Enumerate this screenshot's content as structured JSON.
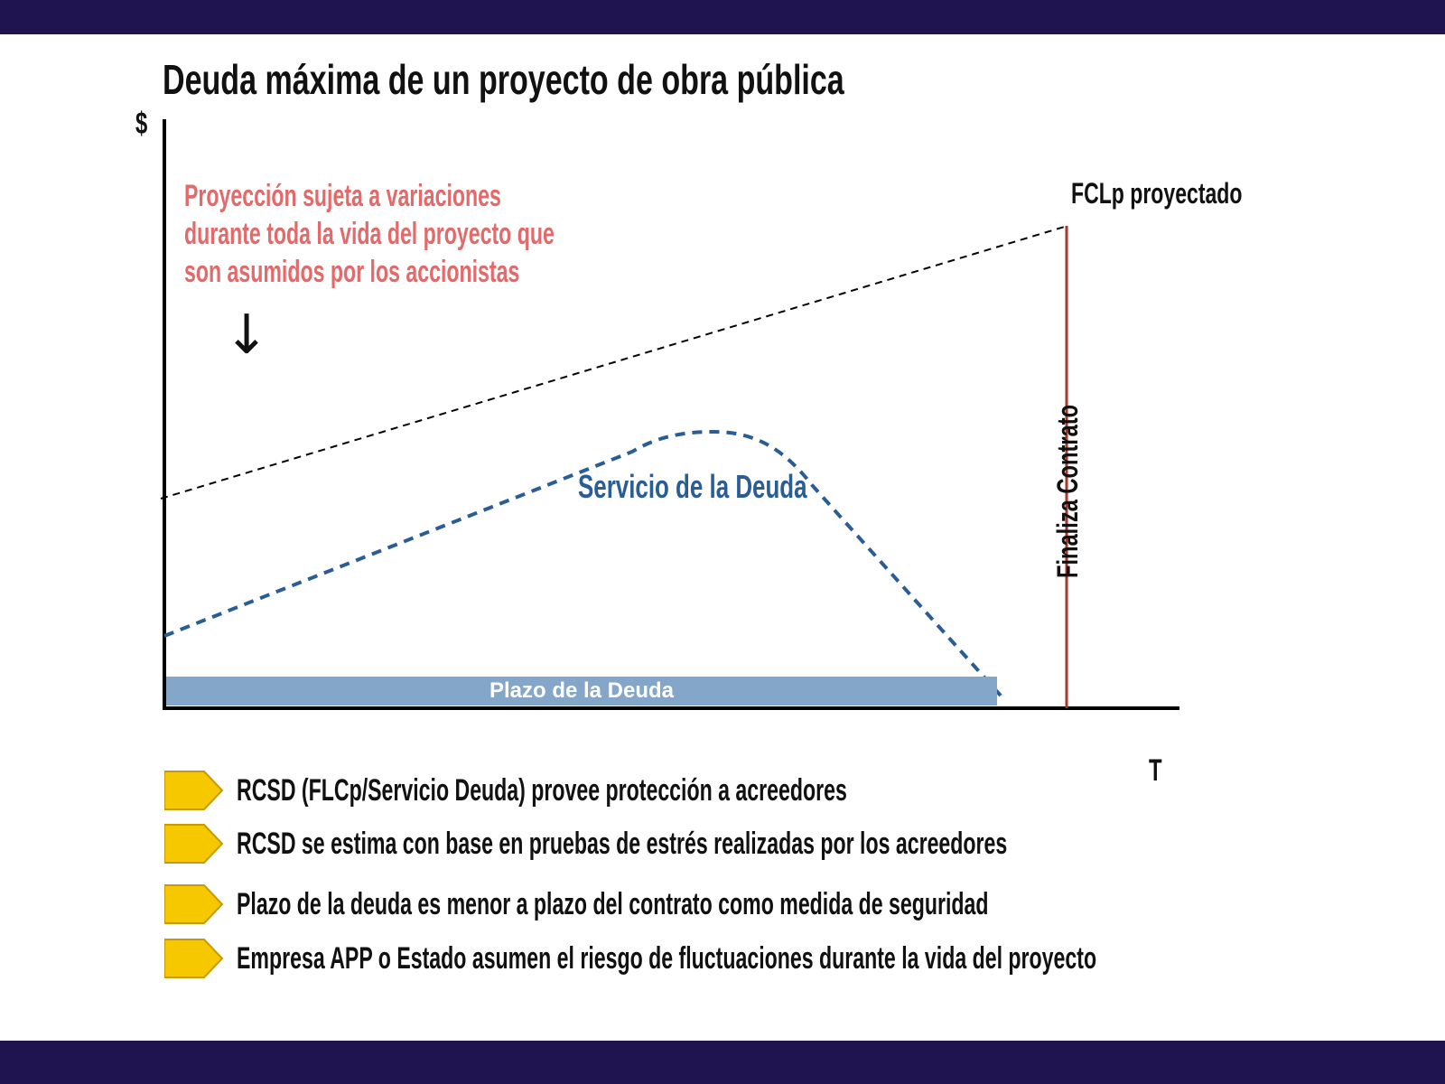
{
  "colors": {
    "band": "#1f1450",
    "projection_note": "#e26a6a",
    "debt_service": "#2a5d95",
    "end_contract_line": "#a33a2a",
    "debt_term_bar": "#84a6c8",
    "bullet_fill": "#f5c800",
    "bullet_edge": "#c99a00"
  },
  "title": "Deuda máxima de un proyecto de obra pública",
  "diagram": {
    "y_axis_label": "$",
    "x_axis_label": "T",
    "fclp_label": "FCLp proyectado",
    "projection_note_lines": [
      "Proyección    sujeta    a    variaciones",
      "durante toda la vida del proyecto que",
      "son asumidos por los accionistas"
    ],
    "arrow_glyph": "↓",
    "debt_service_label": "Servicio de la Deuda",
    "end_contract_label": "Finaliza Contrato",
    "debt_term_label": "Plazo de la Deuda"
  },
  "bullets": [
    "RCSD (FLCp/Servicio Deuda) provee protección a acreedores",
    "RCSD se estima con base en pruebas de estrés realizadas por los acreedores",
    "Plazo de la deuda es menor a plazo del contrato como medida de seguridad",
    "Empresa APP o Estado asumen el riesgo de fluctuaciones durante la vida del proyecto"
  ],
  "icons": {
    "bullet": "chevron-arrow-icon"
  }
}
